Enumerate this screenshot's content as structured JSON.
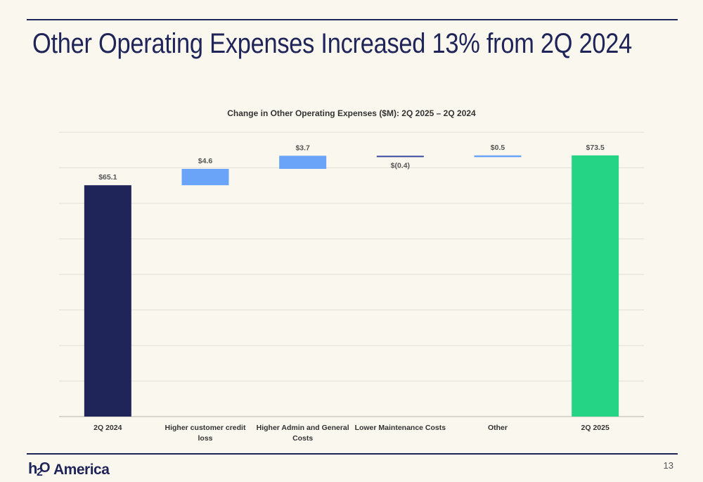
{
  "slide": {
    "title": "Other Operating Expenses Increased 13% from 2Q 2024",
    "page_number": "13",
    "logo": {
      "mark_h": "h",
      "mark_2": "2",
      "mark_o": "O",
      "text": "America"
    }
  },
  "colors": {
    "navy": "#1f2459",
    "increase": "#6aa4f8",
    "decrease": "#3b4a9c",
    "total_end": "#25d484",
    "background": "#faf7ee",
    "grid": "#e3e0d6"
  },
  "chart_data": {
    "type": "bar",
    "subtype": "waterfall",
    "title": "Change in Other Operating Expenses ($M): 2Q 2025 – 2Q 2024",
    "categories": [
      "2Q 2024",
      "Higher customer credit loss",
      "Higher Admin and General Costs",
      "Lower Maintenance Costs",
      "Other",
      "2Q 2025"
    ],
    "values": [
      65.1,
      4.6,
      3.7,
      -0.4,
      0.5,
      73.5
    ],
    "kinds": [
      "total",
      "delta",
      "delta",
      "delta",
      "delta",
      "total"
    ],
    "data_labels": [
      "$65.1",
      "$4.6",
      "$3.7",
      "$(0.4)",
      "$0.5",
      "$73.5"
    ],
    "ylim": [
      0,
      80
    ],
    "grid": true,
    "legend": "none"
  }
}
